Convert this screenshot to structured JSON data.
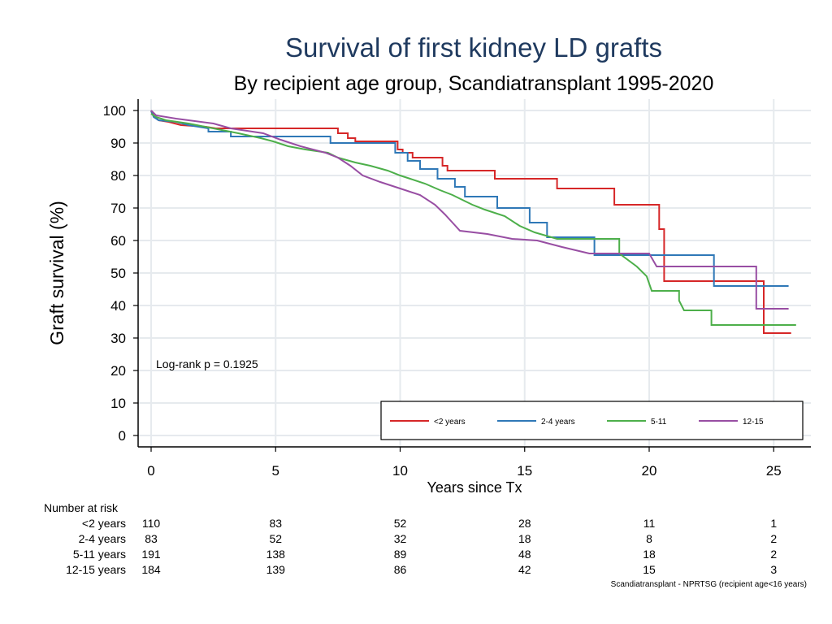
{
  "chart_data": {
    "type": "line",
    "step": true,
    "title": "Survival of first kidney LD grafts",
    "subtitle": "By recipient age group, Scandiatransplant 1995-2020",
    "xlabel": "Years since Tx",
    "ylabel": "Graft survival (%)",
    "xlim": [
      0,
      26.5
    ],
    "ylim": [
      0,
      100
    ],
    "xticks": [
      0,
      5,
      10,
      15,
      20,
      25
    ],
    "yticks": [
      0,
      10,
      20,
      30,
      40,
      50,
      60,
      70,
      80,
      90,
      100
    ],
    "grid": true,
    "annotation": "Log-rank p = 0.1925",
    "footnote": "Scandiatransplant - NPRTSG (recipient age<16 years)",
    "legend_position": "bottom-right",
    "series": [
      {
        "name": "<2 years",
        "color": "#d62728",
        "points": [
          [
            0,
            100
          ],
          [
            0.05,
            99
          ],
          [
            0.15,
            98
          ],
          [
            0.3,
            97
          ],
          [
            0.7,
            96.5
          ],
          [
            1.2,
            95.5
          ],
          [
            2.2,
            95
          ],
          [
            2.6,
            94.5
          ],
          [
            7.5,
            94.5
          ],
          [
            7.5,
            93
          ],
          [
            7.9,
            93
          ],
          [
            7.9,
            91.5
          ],
          [
            8.2,
            91.5
          ],
          [
            8.2,
            90.5
          ],
          [
            9.9,
            90.5
          ],
          [
            9.9,
            88
          ],
          [
            10.1,
            88
          ],
          [
            10.1,
            87
          ],
          [
            10.5,
            87
          ],
          [
            10.5,
            85.5
          ],
          [
            11.7,
            85.5
          ],
          [
            11.7,
            83
          ],
          [
            11.9,
            83
          ],
          [
            11.9,
            81.5
          ],
          [
            13.8,
            81.5
          ],
          [
            13.8,
            79
          ],
          [
            16.3,
            79
          ],
          [
            16.3,
            76
          ],
          [
            18.6,
            76
          ],
          [
            18.6,
            71
          ],
          [
            20.4,
            71
          ],
          [
            20.4,
            63.5
          ],
          [
            20.6,
            63.5
          ],
          [
            20.6,
            47.5
          ],
          [
            24.6,
            47.5
          ],
          [
            24.6,
            31.5
          ],
          [
            25.7,
            31.5
          ]
        ]
      },
      {
        "name": "2-4 years",
        "color": "#2f78b7",
        "points": [
          [
            0,
            100
          ],
          [
            0.1,
            98
          ],
          [
            0.3,
            97
          ],
          [
            1,
            96.5
          ],
          [
            1.5,
            95.5
          ],
          [
            2.3,
            94.5
          ],
          [
            2.3,
            93.5
          ],
          [
            3.2,
            93.5
          ],
          [
            3.2,
            92
          ],
          [
            5,
            92
          ],
          [
            7.2,
            92
          ],
          [
            7.2,
            90
          ],
          [
            9.8,
            90
          ],
          [
            9.8,
            87
          ],
          [
            10.3,
            87
          ],
          [
            10.3,
            84.5
          ],
          [
            10.8,
            84.5
          ],
          [
            10.8,
            82
          ],
          [
            11.5,
            82
          ],
          [
            11.5,
            79
          ],
          [
            12.2,
            79
          ],
          [
            12.2,
            76.5
          ],
          [
            12.6,
            76.5
          ],
          [
            12.6,
            73.5
          ],
          [
            13.9,
            73.5
          ],
          [
            13.9,
            70
          ],
          [
            15.2,
            70
          ],
          [
            15.2,
            65.5
          ],
          [
            15.9,
            65.5
          ],
          [
            15.9,
            61
          ],
          [
            17.8,
            61
          ],
          [
            17.8,
            55.5
          ],
          [
            22.6,
            55.5
          ],
          [
            22.6,
            46
          ],
          [
            25.6,
            46
          ]
        ]
      },
      {
        "name": "5-11",
        "color": "#4daf4a",
        "points": [
          [
            0,
            99
          ],
          [
            0.2,
            98
          ],
          [
            0.6,
            97
          ],
          [
            1.5,
            96
          ],
          [
            2.5,
            94.5
          ],
          [
            3.5,
            93
          ],
          [
            4.4,
            91.5
          ],
          [
            4.9,
            90.5
          ],
          [
            5.5,
            89
          ],
          [
            6.2,
            88
          ],
          [
            7.1,
            87
          ],
          [
            7.5,
            85.5
          ],
          [
            8.2,
            84
          ],
          [
            8.8,
            83
          ],
          [
            9.5,
            81.5
          ],
          [
            10,
            80
          ],
          [
            10.4,
            79
          ],
          [
            11,
            77.5
          ],
          [
            11.6,
            75.5
          ],
          [
            12.1,
            74
          ],
          [
            12.5,
            72.5
          ],
          [
            12.9,
            71
          ],
          [
            13.4,
            69.5
          ],
          [
            14.2,
            67.5
          ],
          [
            14.8,
            64.5
          ],
          [
            15.4,
            62.5
          ],
          [
            16.3,
            60.5
          ],
          [
            18.8,
            60.5
          ],
          [
            18.8,
            56
          ],
          [
            19.5,
            52
          ],
          [
            19.9,
            49
          ],
          [
            20.1,
            44.5
          ],
          [
            21.2,
            44.5
          ],
          [
            21.2,
            41.5
          ],
          [
            21.4,
            38.5
          ],
          [
            22.5,
            38.5
          ],
          [
            22.5,
            34
          ],
          [
            25.9,
            34
          ]
        ]
      },
      {
        "name": "12-15",
        "color": "#984ea3",
        "points": [
          [
            0,
            100
          ],
          [
            0.2,
            98.5
          ],
          [
            1,
            97.5
          ],
          [
            2.5,
            96
          ],
          [
            3.2,
            94.5
          ],
          [
            4.5,
            93
          ],
          [
            5.2,
            91
          ],
          [
            6,
            89
          ],
          [
            7,
            87
          ],
          [
            7.5,
            85.5
          ],
          [
            8,
            83
          ],
          [
            8.5,
            80
          ],
          [
            9.2,
            78
          ],
          [
            10,
            76
          ],
          [
            10.8,
            74
          ],
          [
            11.4,
            71
          ],
          [
            11.8,
            68
          ],
          [
            12.1,
            65.5
          ],
          [
            12.4,
            63
          ],
          [
            13.5,
            62
          ],
          [
            14.5,
            60.5
          ],
          [
            15.5,
            60
          ],
          [
            16.5,
            58
          ],
          [
            17.6,
            56
          ],
          [
            20,
            56
          ],
          [
            20.3,
            52
          ],
          [
            24.3,
            52
          ],
          [
            24.3,
            39
          ],
          [
            25.6,
            39
          ]
        ]
      }
    ],
    "risk_table": {
      "label": "Number at risk",
      "rows": [
        {
          "label": "<2 years",
          "values": [
            110,
            83,
            52,
            28,
            11,
            1
          ]
        },
        {
          "label": "2-4 years",
          "values": [
            83,
            52,
            32,
            18,
            8,
            2
          ]
        },
        {
          "label": "5-11 years",
          "values": [
            191,
            138,
            89,
            48,
            18,
            2
          ]
        },
        {
          "label": "12-15 years",
          "values": [
            184,
            139,
            86,
            42,
            15,
            3
          ]
        }
      ]
    }
  }
}
